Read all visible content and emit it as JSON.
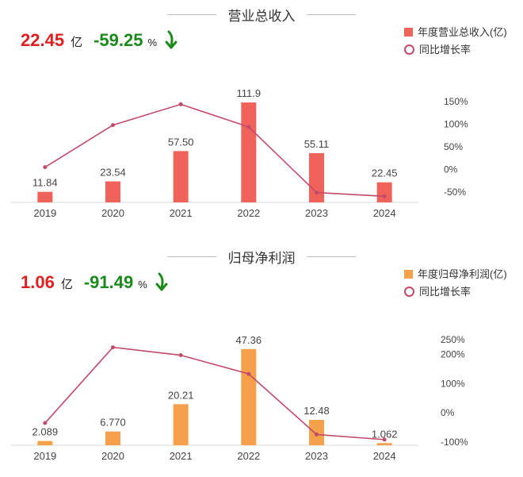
{
  "charts": [
    {
      "title": "营业总收入",
      "summary": {
        "value": "22.45",
        "unit": "亿",
        "change": "-59.25",
        "change_unit": "%"
      },
      "legend": {
        "bar": "年度营业总收入(亿)",
        "line": "同比增长率"
      },
      "colors": {
        "bar": "#f0635a",
        "line": "#c24a6a"
      }
    },
    {
      "title": "归母净利润",
      "summary": {
        "value": "1.06",
        "unit": "亿",
        "change": "-91.49",
        "change_unit": "%"
      },
      "legend": {
        "bar": "年度归母净利润(亿)",
        "line": "同比增长率"
      },
      "colors": {
        "bar": "#f5a04a",
        "line": "#c24a6a"
      }
    }
  ],
  "chart_data": [
    {
      "type": "bar",
      "title": "营业总收入",
      "categories": [
        "2019",
        "2020",
        "2021",
        "2022",
        "2023",
        "2024"
      ],
      "series": [
        {
          "name": "年度营业总收入(亿)",
          "type": "bar",
          "values": [
            11.84,
            23.54,
            57.5,
            111.9,
            55.11,
            22.45
          ],
          "labels": [
            "11.84",
            "23.54",
            "57.50",
            "111.9",
            "55.11",
            "22.45"
          ]
        },
        {
          "name": "同比增长率",
          "type": "line",
          "axis": "right",
          "values": [
            5,
            98,
            144,
            94,
            -51,
            -59.25
          ]
        }
      ],
      "y2_ticks": [
        "150%",
        "100%",
        "50%",
        "0%",
        "-50%"
      ],
      "y2_values": [
        150,
        100,
        50,
        0,
        -50
      ],
      "ylim": [
        0,
        120
      ],
      "y2lim": [
        -65,
        170
      ]
    },
    {
      "type": "bar",
      "title": "归母净利润",
      "categories": [
        "2019",
        "2020",
        "2021",
        "2022",
        "2023",
        "2024"
      ],
      "series": [
        {
          "name": "年度归母净利润(亿)",
          "type": "bar",
          "values": [
            2.089,
            6.77,
            20.21,
            47.36,
            12.48,
            1.062
          ],
          "labels": [
            "2.089",
            "6.770",
            "20.21",
            "47.36",
            "12.48",
            "1.062"
          ]
        },
        {
          "name": "同比增长率",
          "type": "line",
          "axis": "right",
          "values": [
            -35,
            224,
            197,
            133,
            -74,
            -91.49
          ]
        }
      ],
      "y2_ticks": [
        "250%",
        "200%",
        "100%",
        "0%",
        "-100%"
      ],
      "y2_values": [
        250,
        200,
        100,
        0,
        -100
      ],
      "ylim": [
        0,
        50
      ],
      "y2lim": [
        -105,
        280
      ]
    }
  ]
}
